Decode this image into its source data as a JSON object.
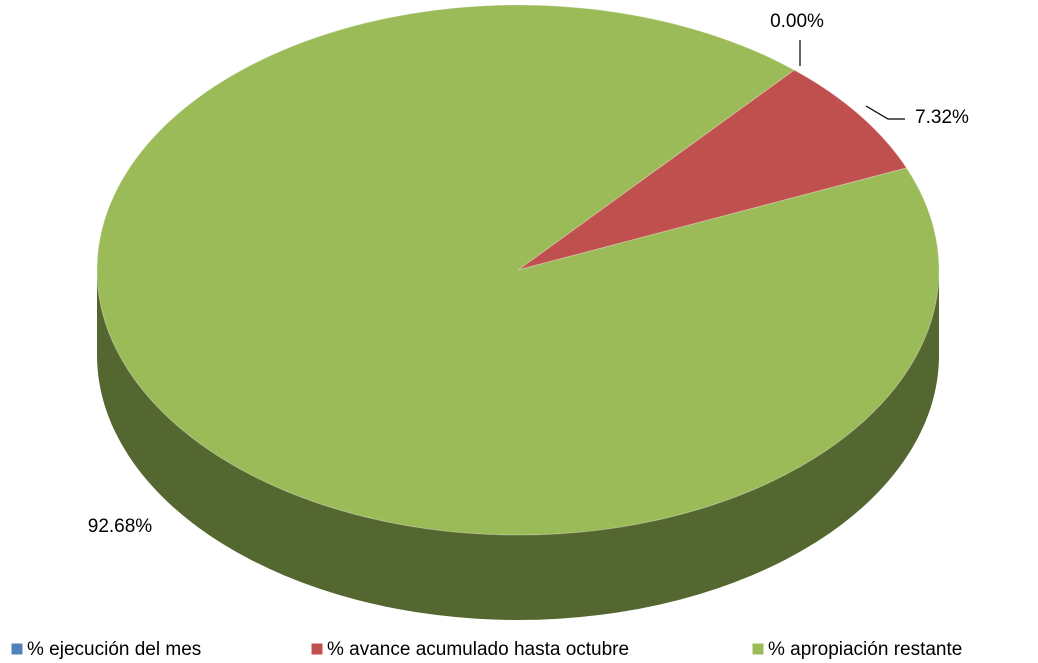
{
  "chart_data": {
    "type": "pie3d",
    "categories": [
      "% ejecución del mes",
      "% avance acumulado hasta octubre",
      "% apropiación restante"
    ],
    "values": [
      0,
      7.32,
      92.68
    ],
    "value_labels": [
      "0.00%",
      "7.32%",
      "92.68%"
    ],
    "colors": [
      "#4f81bd",
      "#c0504d",
      "#9bbb59"
    ],
    "legend": "bottom"
  }
}
